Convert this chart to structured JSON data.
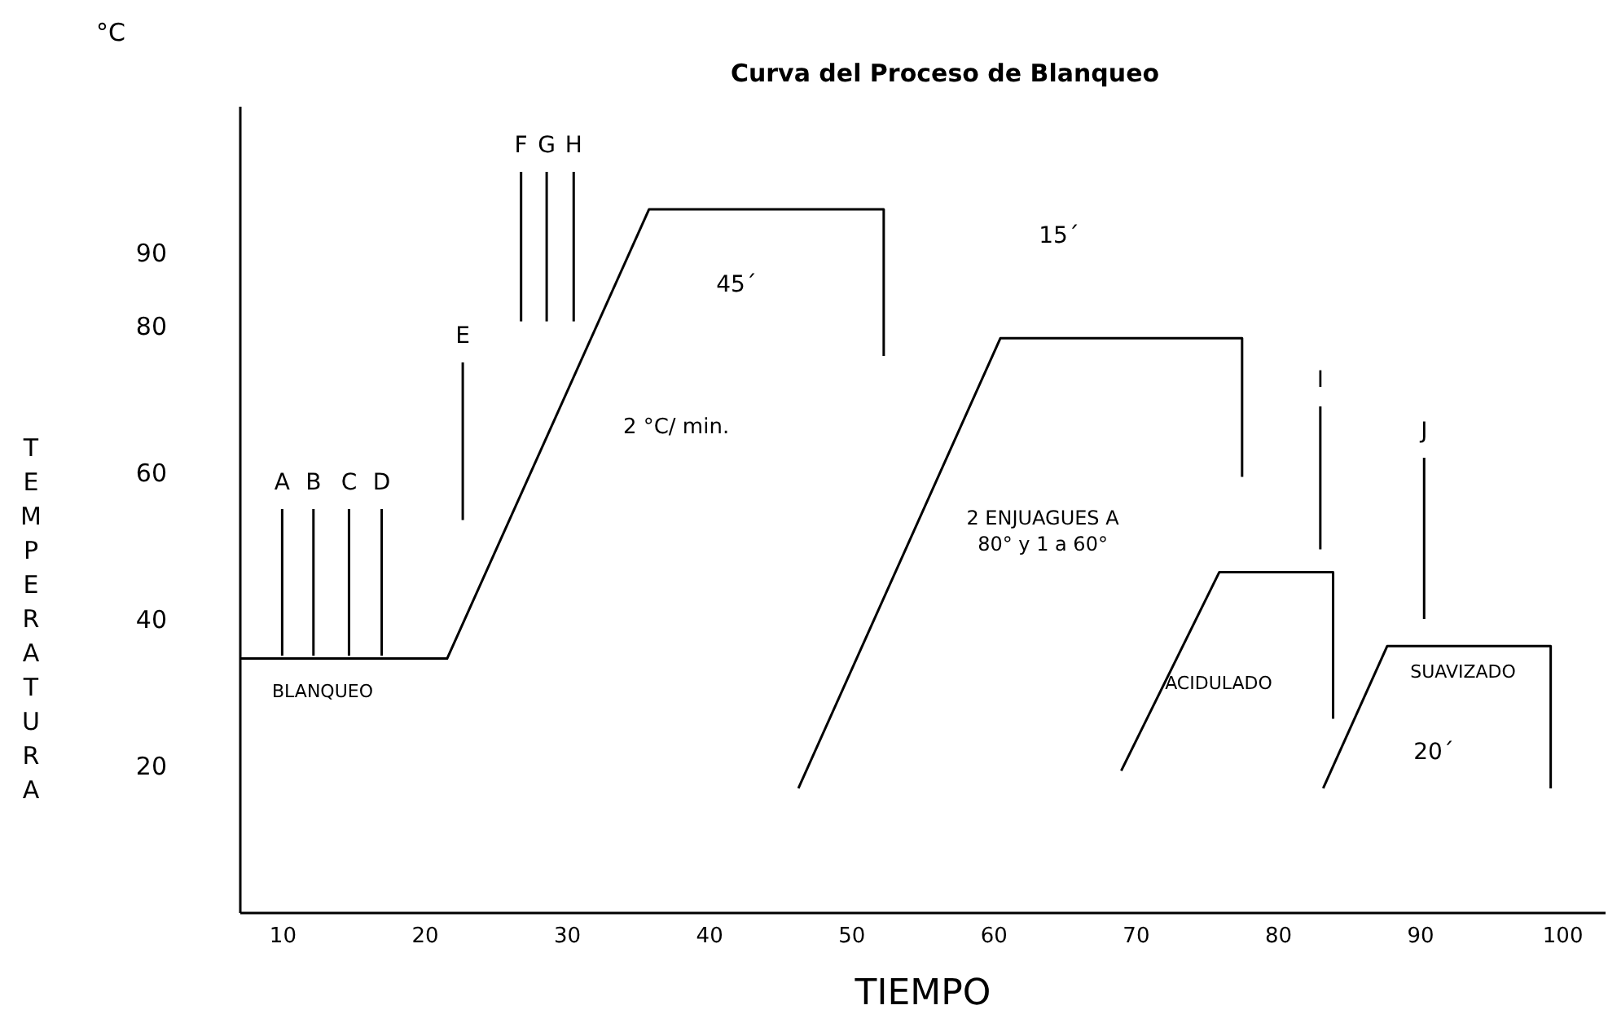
{
  "chart_data": {
    "type": "line",
    "title": "Curva del Proceso de Blanqueo",
    "xlabel": "TIEMPO",
    "ylabel": "TEMPERATURA",
    "xlim": [
      7,
      103
    ],
    "ylim": [
      0,
      110
    ],
    "xticks": [
      10,
      20,
      30,
      40,
      50,
      60,
      70,
      80,
      90,
      100
    ],
    "yticks": [
      20,
      40,
      60,
      80,
      90
    ],
    "grid": false,
    "marker": "none",
    "line_style": "solid",
    "series": [
      {
        "color": "#000000",
        "x": [
          7,
          21.6,
          35.8,
          52.3,
          52.3
        ],
        "values": [
          34.6,
          34.6,
          95.9,
          95.9,
          75.9
        ]
      },
      {
        "color": "#000000",
        "x": [
          46.3,
          60.5,
          77.5,
          77.5
        ],
        "values": [
          16.9,
          78.3,
          78.3,
          59.4
        ]
      },
      {
        "color": "#000000",
        "x": [
          69,
          75.9,
          83.9,
          83.9
        ],
        "values": [
          19.3,
          46.4,
          46.4,
          26.4
        ]
      },
      {
        "color": "#000000",
        "x": [
          83.2,
          87.7,
          99.2,
          99.2
        ],
        "values": [
          16.9,
          36.3,
          36.3,
          16.9
        ]
      },
      {
        "name": "A",
        "color": "#000000",
        "x": [
          10,
          10
        ],
        "values": [
          55,
          35
        ]
      },
      {
        "name": "B",
        "color": "#000000",
        "x": [
          12.2,
          12.2
        ],
        "values": [
          55,
          35
        ]
      },
      {
        "name": "C",
        "color": "#000000",
        "x": [
          14.7,
          14.7
        ],
        "values": [
          55,
          35
        ]
      },
      {
        "name": "D",
        "color": "#000000",
        "x": [
          17,
          17
        ],
        "values": [
          55,
          35
        ]
      },
      {
        "name": "E",
        "color": "#000000",
        "x": [
          22.7,
          22.7
        ],
        "values": [
          75,
          53.5
        ]
      },
      {
        "name": "F",
        "color": "#000000",
        "x": [
          26.8,
          26.8
        ],
        "values": [
          101,
          80.6
        ]
      },
      {
        "name": "G",
        "color": "#000000",
        "x": [
          28.6,
          28.6
        ],
        "values": [
          101,
          80.6
        ]
      },
      {
        "name": "H",
        "color": "#000000",
        "x": [
          30.5,
          30.5
        ],
        "values": [
          101,
          80.6
        ]
      },
      {
        "name": "I",
        "color": "#000000",
        "x": [
          83,
          83
        ],
        "values": [
          69,
          49.5
        ]
      },
      {
        "name": "J",
        "color": "#000000",
        "x": [
          90.3,
          90.3
        ],
        "values": [
          62,
          40
        ]
      }
    ],
    "annotations": [
      "°C",
      "45´",
      "15´",
      "2 °C/ min.",
      "2 ENJUAGUES  A\n80° y 1 a 60°",
      "BLANQUEO",
      "ACIDULADO",
      "SUAVIZADO",
      "20´"
    ]
  }
}
